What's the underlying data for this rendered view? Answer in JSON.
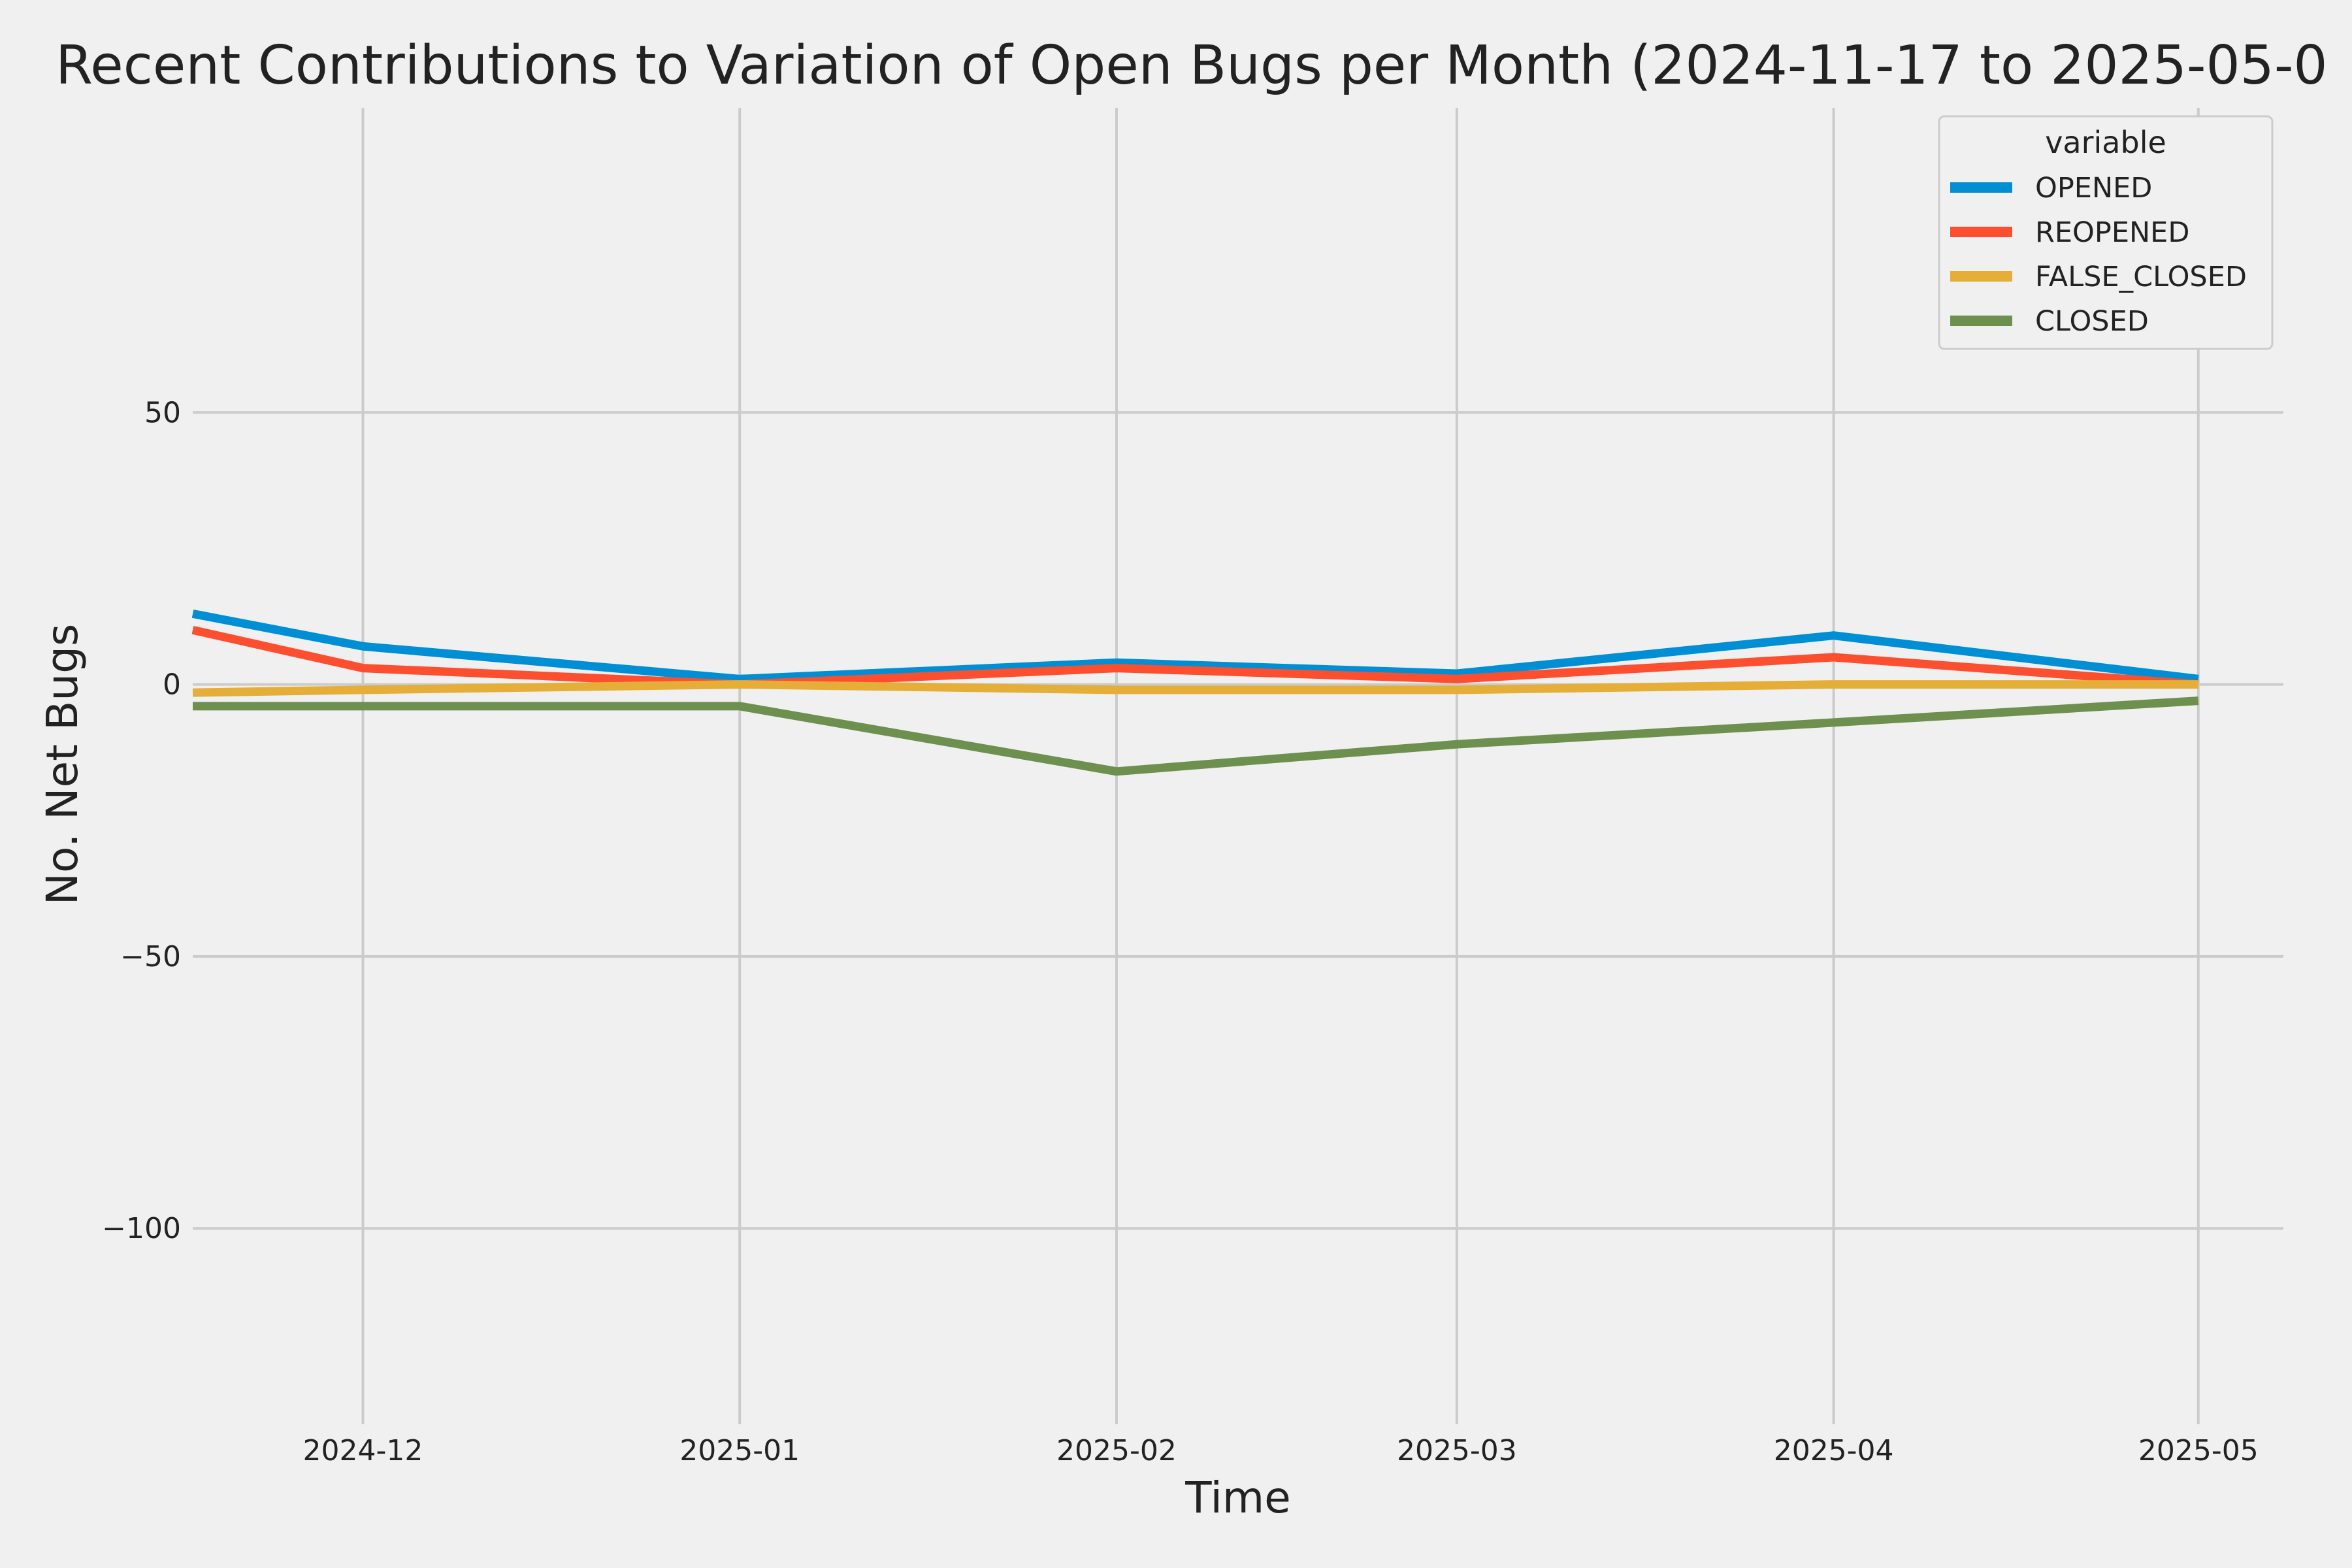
{
  "chart_data": {
    "type": "line",
    "title": "Recent Contributions to Variation of Open Bugs per Month (2024-11-17 to 2025-05-0",
    "xlabel": "Time",
    "ylabel": "No. Net Bugs",
    "x": [
      "2024-11-17",
      "2024-12-01",
      "2025-01-01",
      "2025-02-01",
      "2025-03-01",
      "2025-04-01",
      "2025-05-01"
    ],
    "x_tick_labels": [
      "2024-12",
      "2025-01",
      "2025-02",
      "2025-03",
      "2025-04",
      "2025-05"
    ],
    "x_ticks": [
      "2024-12-01",
      "2025-01-01",
      "2025-02-01",
      "2025-03-01",
      "2025-04-01",
      "2025-05-01"
    ],
    "xlim": [
      "2024-11-17",
      "2025-05-08"
    ],
    "y_ticks": [
      50,
      0,
      -50,
      -100
    ],
    "y_tick_labels": [
      "50",
      "0",
      "−50",
      "−100"
    ],
    "ylim": [
      -136,
      106
    ],
    "grid": true,
    "legend": {
      "title": "variable",
      "placement": "top-right"
    },
    "series": [
      {
        "name": "OPENED",
        "color": "#008fd5",
        "values": [
          13,
          7,
          1,
          4,
          2,
          9,
          1
        ]
      },
      {
        "name": "REOPENED",
        "color": "#fc4f30",
        "values": [
          10,
          3,
          0,
          3,
          1,
          5,
          0
        ]
      },
      {
        "name": "FALSE_CLOSED",
        "color": "#e5ae38",
        "values": [
          -1.5,
          -1,
          0,
          -1,
          -1,
          0,
          0
        ]
      },
      {
        "name": "CLOSED",
        "color": "#6d904f",
        "values": [
          -4,
          -4,
          -4,
          -16,
          -11,
          -7,
          -3
        ]
      }
    ]
  }
}
